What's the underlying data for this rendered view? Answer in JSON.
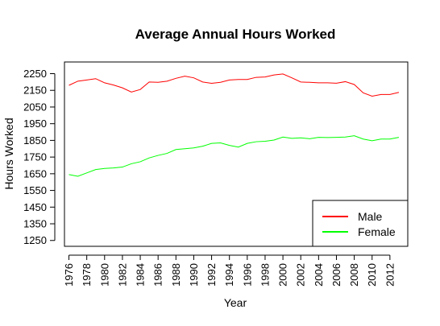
{
  "chart_data": {
    "type": "line",
    "title": "Average Annual Hours Worked",
    "xlabel": "Year",
    "ylabel": "Hours Worked",
    "xlim": [
      1975.5,
      2014
    ],
    "ylim": [
      1215,
      2320
    ],
    "x_ticks": [
      1976,
      1978,
      1980,
      1982,
      1984,
      1986,
      1988,
      1990,
      1992,
      1994,
      1996,
      1998,
      2000,
      2002,
      2004,
      2006,
      2008,
      2010,
      2012
    ],
    "y_ticks": [
      1250,
      1350,
      1450,
      1550,
      1650,
      1750,
      1850,
      1950,
      2050,
      2150,
      2250
    ],
    "legend_position": "bottom-right",
    "grid": false,
    "x": [
      1976,
      1977,
      1978,
      1979,
      1980,
      1981,
      1982,
      1983,
      1984,
      1985,
      1986,
      1987,
      1988,
      1989,
      1990,
      1991,
      1992,
      1993,
      1994,
      1995,
      1996,
      1997,
      1998,
      1999,
      2000,
      2001,
      2002,
      2003,
      2004,
      2005,
      2006,
      2007,
      2008,
      2009,
      2010,
      2011,
      2012,
      2013
    ],
    "series": [
      {
        "name": "Male",
        "color": "#ff0000",
        "values": [
          2180,
          2205,
          2212,
          2220,
          2195,
          2182,
          2165,
          2140,
          2155,
          2200,
          2198,
          2205,
          2222,
          2235,
          2225,
          2200,
          2192,
          2198,
          2212,
          2215,
          2215,
          2228,
          2230,
          2242,
          2248,
          2225,
          2200,
          2198,
          2195,
          2195,
          2193,
          2202,
          2185,
          2135,
          2115,
          2125,
          2125,
          2138
        ]
      },
      {
        "name": "Female",
        "color": "#00ff00",
        "values": [
          1645,
          1635,
          1655,
          1675,
          1682,
          1685,
          1690,
          1710,
          1722,
          1745,
          1760,
          1772,
          1795,
          1800,
          1805,
          1815,
          1832,
          1835,
          1820,
          1810,
          1832,
          1842,
          1845,
          1852,
          1870,
          1862,
          1865,
          1860,
          1868,
          1867,
          1868,
          1870,
          1878,
          1858,
          1848,
          1858,
          1858,
          1868
        ]
      }
    ]
  }
}
